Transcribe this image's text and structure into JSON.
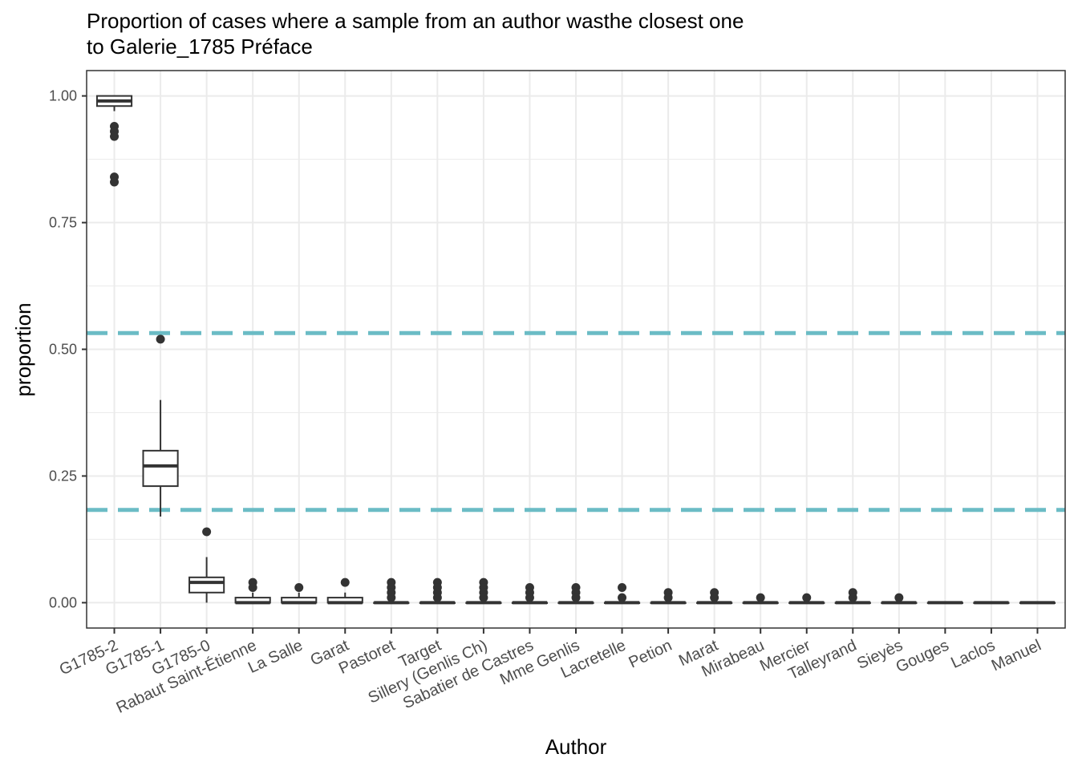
{
  "chart_data": {
    "type": "boxplot",
    "title_line1": "Proportion of cases where a sample from an author wasthe closest one",
    "title_line2": "to Galerie_1785 Préface",
    "xlabel": "Author",
    "ylabel": "proportion",
    "ylim": [
      -0.05,
      1.05
    ],
    "y_ticks": [
      "0.00",
      "0.25",
      "0.50",
      "0.75",
      "1.00"
    ],
    "grid": true,
    "categories": [
      "G1785-2",
      "G1785-1",
      "G1785-0",
      "Rabaut Saint-Étienne",
      "La Salle",
      "Garat",
      "Pastoret",
      "Target",
      "Sillery (Genlis Ch)",
      "Sabatier de Castres",
      "Mme Genlis",
      "Lacretelle",
      "Petion",
      "Marat",
      "Mirabeau",
      "Mercier",
      "Talleyrand",
      "Sieyès",
      "Gouges",
      "Laclos",
      "Manuel"
    ],
    "boxes": [
      {
        "author": "G1785-2",
        "min": 0.97,
        "q1": 0.98,
        "median": 0.99,
        "q3": 1.0,
        "max": 1.0,
        "outliers": [
          0.94,
          0.93,
          0.92,
          0.84,
          0.83
        ]
      },
      {
        "author": "G1785-1",
        "min": 0.17,
        "q1": 0.23,
        "median": 0.27,
        "q3": 0.3,
        "max": 0.4,
        "outliers": [
          0.52
        ]
      },
      {
        "author": "G1785-0",
        "min": 0.0,
        "q1": 0.02,
        "median": 0.04,
        "q3": 0.05,
        "max": 0.09,
        "outliers": [
          0.14
        ]
      },
      {
        "author": "Rabaut Saint-Étienne",
        "min": 0.0,
        "q1": 0.0,
        "median": 0.0,
        "q3": 0.01,
        "max": 0.02,
        "outliers": [
          0.04,
          0.03
        ]
      },
      {
        "author": "La Salle",
        "min": 0.0,
        "q1": 0.0,
        "median": 0.0,
        "q3": 0.01,
        "max": 0.02,
        "outliers": [
          0.03
        ]
      },
      {
        "author": "Garat",
        "min": 0.0,
        "q1": 0.0,
        "median": 0.0,
        "q3": 0.01,
        "max": 0.02,
        "outliers": [
          0.04
        ]
      },
      {
        "author": "Pastoret",
        "min": 0.0,
        "q1": 0.0,
        "median": 0.0,
        "q3": 0.0,
        "max": 0.0,
        "outliers": [
          0.04,
          0.03,
          0.02,
          0.01
        ]
      },
      {
        "author": "Target",
        "min": 0.0,
        "q1": 0.0,
        "median": 0.0,
        "q3": 0.0,
        "max": 0.0,
        "outliers": [
          0.04,
          0.03,
          0.02,
          0.01
        ]
      },
      {
        "author": "Sillery (Genlis Ch)",
        "min": 0.0,
        "q1": 0.0,
        "median": 0.0,
        "q3": 0.0,
        "max": 0.0,
        "outliers": [
          0.04,
          0.03,
          0.02,
          0.01
        ]
      },
      {
        "author": "Sabatier de Castres",
        "min": 0.0,
        "q1": 0.0,
        "median": 0.0,
        "q3": 0.0,
        "max": 0.0,
        "outliers": [
          0.03,
          0.02,
          0.01
        ]
      },
      {
        "author": "Mme Genlis",
        "min": 0.0,
        "q1": 0.0,
        "median": 0.0,
        "q3": 0.0,
        "max": 0.0,
        "outliers": [
          0.03,
          0.02,
          0.01
        ]
      },
      {
        "author": "Lacretelle",
        "min": 0.0,
        "q1": 0.0,
        "median": 0.0,
        "q3": 0.0,
        "max": 0.0,
        "outliers": [
          0.03,
          0.01
        ]
      },
      {
        "author": "Petion",
        "min": 0.0,
        "q1": 0.0,
        "median": 0.0,
        "q3": 0.0,
        "max": 0.0,
        "outliers": [
          0.02,
          0.01
        ]
      },
      {
        "author": "Marat",
        "min": 0.0,
        "q1": 0.0,
        "median": 0.0,
        "q3": 0.0,
        "max": 0.0,
        "outliers": [
          0.02,
          0.01
        ]
      },
      {
        "author": "Mirabeau",
        "min": 0.0,
        "q1": 0.0,
        "median": 0.0,
        "q3": 0.0,
        "max": 0.0,
        "outliers": [
          0.01
        ]
      },
      {
        "author": "Mercier",
        "min": 0.0,
        "q1": 0.0,
        "median": 0.0,
        "q3": 0.0,
        "max": 0.0,
        "outliers": [
          0.01
        ]
      },
      {
        "author": "Talleyrand",
        "min": 0.0,
        "q1": 0.0,
        "median": 0.0,
        "q3": 0.0,
        "max": 0.0,
        "outliers": [
          0.02,
          0.01
        ]
      },
      {
        "author": "Sieyès",
        "min": 0.0,
        "q1": 0.0,
        "median": 0.0,
        "q3": 0.0,
        "max": 0.0,
        "outliers": [
          0.01
        ]
      },
      {
        "author": "Gouges",
        "min": 0.0,
        "q1": 0.0,
        "median": 0.0,
        "q3": 0.0,
        "max": 0.0,
        "outliers": []
      },
      {
        "author": "Laclos",
        "min": 0.0,
        "q1": 0.0,
        "median": 0.0,
        "q3": 0.0,
        "max": 0.0,
        "outliers": []
      },
      {
        "author": "Manuel",
        "min": 0.0,
        "q1": 0.0,
        "median": 0.0,
        "q3": 0.0,
        "max": 0.0,
        "outliers": []
      }
    ],
    "reference_lines": [
      {
        "y": 0.532,
        "style": "dashed",
        "color": "#6bbcc5"
      },
      {
        "y": 0.183,
        "style": "dashed",
        "color": "#6bbcc5"
      }
    ],
    "colors": {
      "box_stroke": "#333333",
      "grid": "#ebebeb",
      "panel_border": "#333333"
    }
  }
}
